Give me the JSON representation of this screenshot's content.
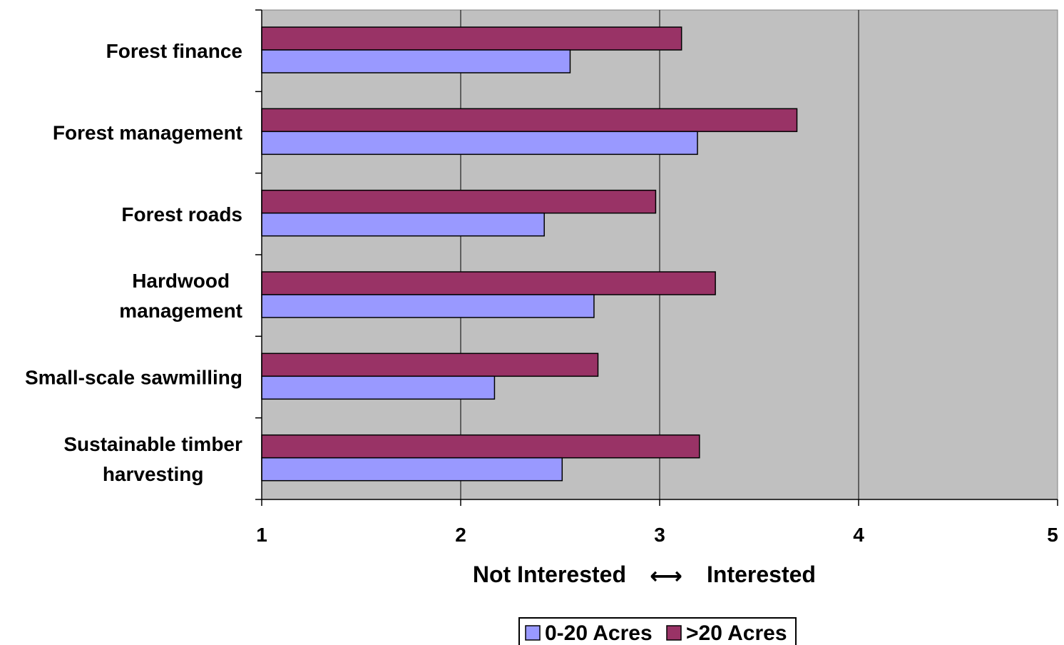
{
  "chart_data": {
    "type": "bar",
    "orientation": "horizontal",
    "categories": [
      [
        "Forest finance"
      ],
      [
        "Forest management"
      ],
      [
        "Forest roads"
      ],
      [
        "Hardwood",
        "management"
      ],
      [
        "Small-scale sawmilling"
      ],
      [
        "Sustainable timber",
        "harvesting"
      ]
    ],
    "series": [
      {
        "name": ">20 Acres",
        "color": "#993366",
        "values": [
          3.11,
          3.69,
          2.98,
          3.28,
          2.69,
          3.2
        ]
      },
      {
        "name": "0-20 Acres",
        "color": "#9999ff",
        "values": [
          2.55,
          3.19,
          2.42,
          2.67,
          2.17,
          2.51
        ]
      }
    ],
    "xlim": [
      1,
      5
    ],
    "xticks": [
      "1",
      "2",
      "3",
      "4",
      "5"
    ],
    "xlabel": {
      "left": "Not Interested",
      "arrow": "⟷",
      "right": "Interested"
    },
    "grid": "vertical",
    "plot_background": "#c0c0c0",
    "legend": {
      "position": "bottom",
      "entries": [
        {
          "label": "0-20 Acres",
          "color": "#9999ff"
        },
        {
          "label": ">20 Acres",
          "color": "#993366"
        }
      ]
    }
  }
}
